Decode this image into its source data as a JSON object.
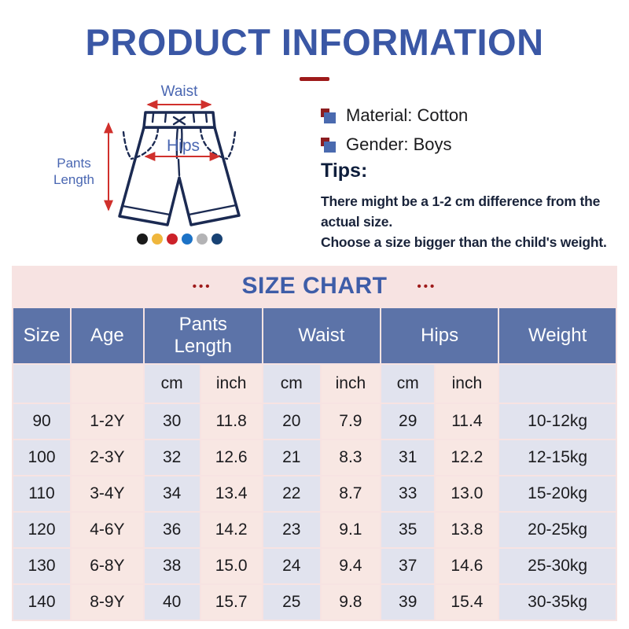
{
  "title": "PRODUCT INFORMATION",
  "diagram": {
    "labels": {
      "waist": "Waist",
      "hips": "Hips",
      "pants_length": "Pants Length"
    },
    "swatch_colors": [
      "#1A1A1A",
      "#EFB63C",
      "#CC2129",
      "#1C72C6",
      "#B3B3B5",
      "#184274"
    ]
  },
  "details": {
    "items": [
      {
        "label": "Material: Cotton"
      },
      {
        "label": "Gender: Boys"
      }
    ]
  },
  "tips": {
    "heading": "Tips:",
    "lines": [
      "There might be a 1-2 cm difference from the",
      "actual size.",
      "Choose a size bigger than the child's weight."
    ]
  },
  "size_chart": {
    "title": "SIZE CHART",
    "dots": "•••",
    "headers": [
      "Size",
      "Age",
      "Pants Length",
      "Waist",
      "Hips",
      "Weight"
    ],
    "unit_row": [
      "",
      "",
      "cm",
      "inch",
      "cm",
      "inch",
      "cm",
      "inch",
      ""
    ],
    "rows": [
      [
        "90",
        "1-2Y",
        "30",
        "11.8",
        "20",
        "7.9",
        "29",
        "11.4",
        "10-12kg"
      ],
      [
        "100",
        "2-3Y",
        "32",
        "12.6",
        "21",
        "8.3",
        "31",
        "12.2",
        "12-15kg"
      ],
      [
        "110",
        "3-4Y",
        "34",
        "13.4",
        "22",
        "8.7",
        "33",
        "13.0",
        "15-20kg"
      ],
      [
        "120",
        "4-6Y",
        "36",
        "14.2",
        "23",
        "9.1",
        "35",
        "13.8",
        "20-25kg"
      ],
      [
        "130",
        "6-8Y",
        "38",
        "15.0",
        "24",
        "9.4",
        "37",
        "14.6",
        "25-30kg"
      ],
      [
        "140",
        "8-9Y",
        "40",
        "15.7",
        "25",
        "9.8",
        "39",
        "15.4",
        "30-35kg"
      ]
    ]
  }
}
